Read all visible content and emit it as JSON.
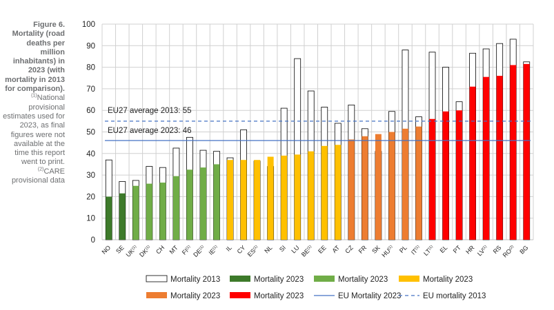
{
  "caption": {
    "figure": "Figure 6.",
    "title": "Mortality (road deaths per million inhabitants) in 2023 (with mortality in 2013 for comparison).",
    "note1_marker": "(1)",
    "note1": "National provisional estimates used for 2023, as final figures were not available at the time this report went to print.",
    "note2_marker": "(2)",
    "note2": "CARE provisional data"
  },
  "chart_data": {
    "type": "bar",
    "ylim": [
      0,
      100
    ],
    "yticks": [
      0,
      10,
      20,
      30,
      40,
      50,
      60,
      70,
      80,
      90,
      100
    ],
    "grid": true,
    "categories": [
      "NO",
      "SE",
      "UK",
      "DK",
      "CH",
      "MT",
      "FI",
      "DE",
      "IE",
      "IL",
      "CY",
      "ES",
      "NL",
      "SI",
      "LU",
      "BE",
      "EE",
      "AT",
      "CZ",
      "FR",
      "SK",
      "HU",
      "PL",
      "IT",
      "LT",
      "EL",
      "PT",
      "HR",
      "LV",
      "RS",
      "RO",
      "BG"
    ],
    "category_notes": [
      "",
      "",
      "(1)",
      "(1)",
      "",
      "",
      "(1)",
      "(1)",
      "(1)",
      "",
      "",
      "(1)",
      "",
      "",
      "",
      "(1)",
      "",
      "",
      "",
      "",
      "",
      "(1)",
      "",
      "(1)",
      "(1)",
      "",
      "",
      "",
      "(1)",
      "",
      "(2)",
      ""
    ],
    "series": [
      {
        "name": "Mortality 2013",
        "style": "outline",
        "values": [
          37,
          27,
          27.5,
          34,
          33.5,
          42.5,
          47.5,
          41.5,
          41,
          38,
          51,
          36.5,
          34,
          61,
          84,
          69,
          61.5,
          54,
          62.5,
          51.5,
          41,
          59.5,
          88,
          57,
          87,
          80,
          64,
          86.5,
          88.5,
          91,
          93,
          82.5
        ]
      },
      {
        "name": "Mortality 2023",
        "style": "filled",
        "values": [
          20,
          21.5,
          25,
          26,
          26.5,
          29.5,
          32.5,
          33.5,
          35,
          37,
          37,
          37,
          38.5,
          39,
          39.5,
          41,
          43.5,
          44,
          46.5,
          48,
          49,
          50,
          51.5,
          52.5,
          56,
          59.5,
          60,
          71,
          75.5,
          76,
          81,
          81.5
        ],
        "color_groups": [
          "dkgreen",
          "dkgreen",
          "green",
          "green",
          "green",
          "green",
          "green",
          "green",
          "green",
          "yellow",
          "yellow",
          "yellow",
          "yellow",
          "yellow",
          "yellow",
          "yellow",
          "yellow",
          "yellow",
          "orange",
          "orange",
          "orange",
          "orange",
          "orange",
          "orange",
          "red",
          "red",
          "red",
          "red",
          "red",
          "red",
          "red",
          "red"
        ]
      }
    ],
    "colors": {
      "dkgreen": "#3d7a2a",
      "green": "#70ad47",
      "yellow": "#ffc000",
      "orange": "#ed7d31",
      "red": "#ff0000",
      "eu_line": "#4472c4",
      "outline": "#000000",
      "grid": "#d0d0d0"
    },
    "reference_lines": [
      {
        "label": "EU27 average 2013: 55",
        "value": 55,
        "style": "dashed"
      },
      {
        "label": "EU27 average 2023: 46",
        "value": 46,
        "style": "solid"
      }
    ],
    "legend": {
      "placement": "bottom",
      "rows": [
        [
          {
            "label": "Mortality 2013",
            "kind": "outline"
          },
          {
            "label": "Mortality 2023",
            "kind": "dkgreen"
          },
          {
            "label": "Mortality 2023",
            "kind": "green"
          },
          {
            "label": "Mortality 2023",
            "kind": "yellow"
          }
        ],
        [
          {
            "label": "Mortality 2023",
            "kind": "orange"
          },
          {
            "label": "Mortality 2023",
            "kind": "red"
          },
          {
            "label": "EU Mortality 2023",
            "kind": "solid-line"
          },
          {
            "label": "EU mortality 2013",
            "kind": "dashed-line"
          }
        ]
      ]
    }
  }
}
